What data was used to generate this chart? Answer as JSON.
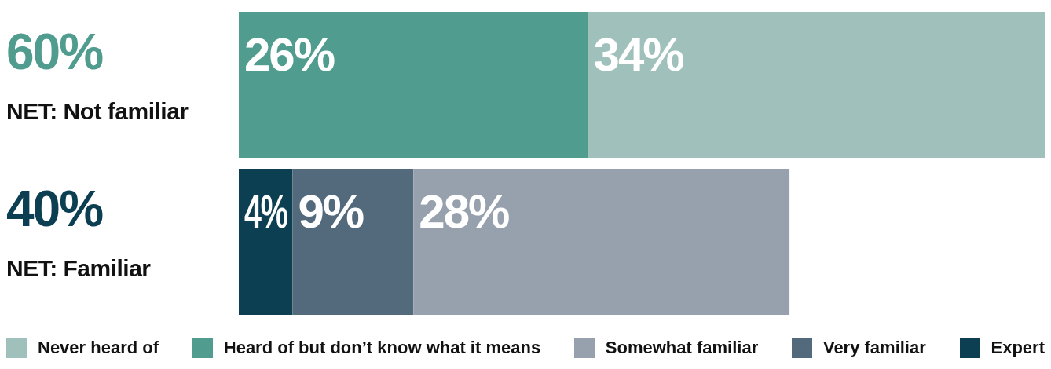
{
  "chart_data": {
    "type": "bar",
    "orientation": "horizontal",
    "stacked": true,
    "legend": "bottom",
    "categories": [
      "NET: Not familiar",
      "NET: Familiar"
    ],
    "totals": [
      "60%",
      "40%"
    ],
    "series": [
      {
        "name": "Expert",
        "color": "#0d3f52",
        "values": [
          null,
          4
        ],
        "value_labels": [
          null,
          "4%"
        ]
      },
      {
        "name": "Very familiar",
        "color": "#526a7b",
        "values": [
          null,
          9
        ],
        "value_labels": [
          null,
          "9%"
        ]
      },
      {
        "name": "Somewhat familiar",
        "color": "#97a1ad",
        "values": [
          null,
          28
        ],
        "value_labels": [
          null,
          "28%"
        ]
      },
      {
        "name": "Heard of but don’t know what it means",
        "color": "#509c8e",
        "values": [
          26,
          null
        ],
        "value_labels": [
          "26%",
          null
        ]
      },
      {
        "name": "Never heard of",
        "color": "#a0c1bb",
        "values": [
          34,
          null
        ],
        "value_labels": [
          "34%",
          null
        ]
      }
    ]
  }
}
